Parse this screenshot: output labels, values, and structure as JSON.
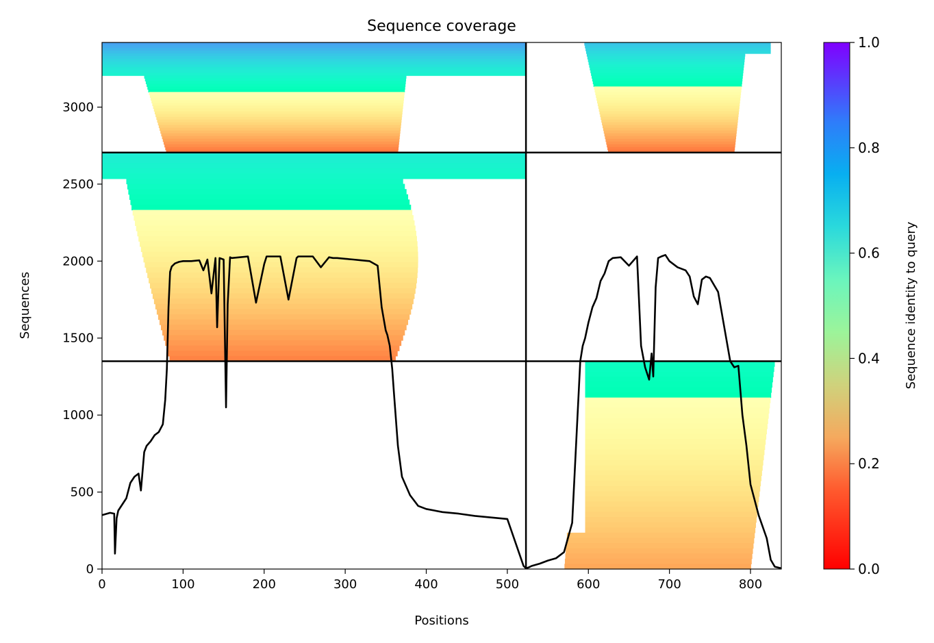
{
  "chart_data": {
    "type": "heatmap",
    "title": "Sequence coverage",
    "xlabel": "Positions",
    "ylabel": "Sequences",
    "xlim": [
      0,
      838
    ],
    "ylim": [
      0,
      3420
    ],
    "x_ticks": [
      0,
      100,
      200,
      300,
      400,
      500,
      600,
      700,
      800
    ],
    "y_ticks": [
      0,
      500,
      1000,
      1500,
      2000,
      2500,
      3000
    ],
    "grid": false,
    "legend": "none",
    "colorbar": {
      "label": "Sequence identity to query",
      "range": [
        0,
        1
      ],
      "ticks": [
        "0.0",
        "0.2",
        "0.4",
        "0.6",
        "0.8",
        "1.0"
      ],
      "colormap": "rainbow"
    },
    "domain_dividers": {
      "x_boundary": 523,
      "y_boundaries": [
        1350,
        2705
      ]
    },
    "blocks": [
      {
        "name": "block-1-top-left",
        "x_range": [
          0,
          523
        ],
        "y_range": [
          2705,
          3420
        ],
        "identity_top": 0.78,
        "identity_bottom": 0.14
      },
      {
        "name": "block-1-top-right",
        "x_range": [
          523,
          838
        ],
        "y_range": [
          2705,
          3420
        ],
        "identity_top": 0.72,
        "identity_bottom": 0.14
      },
      {
        "name": "block-2-middle-left",
        "x_range": [
          0,
          523
        ],
        "y_range": [
          1350,
          2705
        ],
        "identity_top": 0.62,
        "identity_bottom": 0.16
      },
      {
        "name": "block-3-bottom-right",
        "x_range": [
          523,
          838
        ],
        "y_range": [
          0,
          1350
        ],
        "identity_top": 0.55,
        "identity_bottom": 0.22
      }
    ],
    "coverage_line": {
      "name": "coverage",
      "x": [
        0,
        10,
        15,
        16,
        18,
        20,
        25,
        30,
        35,
        40,
        45,
        48,
        52,
        55,
        60,
        65,
        70,
        75,
        78,
        80,
        82,
        84,
        86,
        90,
        95,
        100,
        110,
        120,
        125,
        130,
        135,
        140,
        142,
        145,
        150,
        153,
        155,
        158,
        160,
        170,
        180,
        190,
        200,
        203,
        206,
        210,
        220,
        230,
        240,
        242,
        245,
        250,
        260,
        270,
        280,
        285,
        290,
        300,
        310,
        320,
        330,
        340,
        345,
        350,
        352,
        355,
        358,
        360,
        365,
        370,
        380,
        390,
        400,
        420,
        440,
        460,
        480,
        500,
        520,
        523,
        526,
        530,
        540,
        550,
        560,
        570,
        580,
        590,
        593,
        596,
        600,
        605,
        610,
        615,
        620,
        625,
        630,
        640,
        650,
        660,
        665,
        670,
        675,
        678,
        680,
        683,
        686,
        690,
        695,
        700,
        710,
        720,
        725,
        730,
        735,
        740,
        745,
        750,
        760,
        770,
        775,
        780,
        785,
        790,
        795,
        800,
        810,
        820,
        825,
        830,
        838
      ],
      "y": [
        350,
        365,
        360,
        100,
        330,
        380,
        420,
        460,
        560,
        600,
        620,
        510,
        760,
        800,
        830,
        870,
        890,
        940,
        1100,
        1300,
        1700,
        1930,
        1965,
        1985,
        1995,
        2000,
        2000,
        2005,
        1940,
        2010,
        1790,
        2020,
        1570,
        2020,
        2010,
        1050,
        1720,
        2025,
        2020,
        2025,
        2030,
        1730,
        1980,
        2030,
        2030,
        2030,
        2030,
        1750,
        2020,
        2030,
        2030,
        2030,
        2030,
        1960,
        2025,
        2020,
        2020,
        2015,
        2010,
        2005,
        2000,
        1970,
        1700,
        1550,
        1520,
        1450,
        1300,
        1150,
        800,
        600,
        480,
        410,
        390,
        370,
        360,
        345,
        335,
        325,
        20,
        5,
        10,
        20,
        35,
        55,
        70,
        110,
        300,
        1350,
        1450,
        1500,
        1600,
        1700,
        1760,
        1870,
        1920,
        2000,
        2020,
        2025,
        1970,
        2030,
        1450,
        1310,
        1230,
        1400,
        1250,
        1830,
        2020,
        2030,
        2040,
        2000,
        1960,
        1940,
        1900,
        1770,
        1720,
        1880,
        1900,
        1890,
        1800,
        1500,
        1350,
        1310,
        1320,
        1000,
        800,
        550,
        350,
        200,
        60,
        15,
        5
      ]
    }
  }
}
